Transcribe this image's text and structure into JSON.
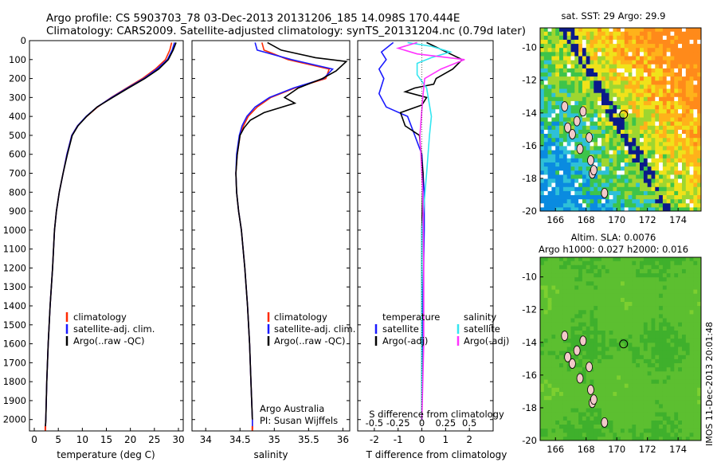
{
  "header": {
    "line1": "Argo profile: CS 5903703_78 03-Dec-2013 20131206_185 14.098S 170.444E",
    "line2": "Climatology: CARS2009. Satellite-adjusted climatology: synTS_20131204.nc (0.79d later)"
  },
  "colors": {
    "climatology": "#ff2a00",
    "satellite": "#1a1aff",
    "argo": "#000000",
    "sat_s": "#33e6f0",
    "argo_s": "#ff33ff"
  },
  "chart_data": [
    {
      "type": "line",
      "id": "temperature",
      "xlabel": "temperature (deg C)",
      "ylabel": "",
      "xlim": [
        -1,
        31
      ],
      "ylim": [
        2060,
        0
      ],
      "xticks": [
        0,
        5,
        10,
        15,
        20,
        25,
        30
      ],
      "yticks": [
        0,
        100,
        200,
        300,
        400,
        500,
        600,
        700,
        800,
        900,
        1000,
        1100,
        1200,
        1300,
        1400,
        1500,
        1600,
        1700,
        1800,
        1900,
        2000
      ],
      "legend": {
        "position": "bottom-left",
        "entries": [
          "climatology",
          "satellite-adj. clim.",
          "Argo(..raw -QC)"
        ]
      },
      "series": [
        {
          "name": "climatology",
          "color": "#ff2a00",
          "points": [
            [
              28.6,
              10
            ],
            [
              28.2,
              50
            ],
            [
              27.3,
              100
            ],
            [
              25.2,
              150
            ],
            [
              22.5,
              200
            ],
            [
              19.2,
              250
            ],
            [
              16,
              300
            ],
            [
              13.2,
              350
            ],
            [
              10.9,
              400
            ],
            [
              9,
              450
            ],
            [
              7.8,
              500
            ],
            [
              6.8,
              600
            ],
            [
              6,
              700
            ],
            [
              5.2,
              800
            ],
            [
              4.6,
              900
            ],
            [
              4.2,
              1000
            ],
            [
              3.8,
              1200
            ],
            [
              3.3,
              1400
            ],
            [
              2.9,
              1600
            ],
            [
              2.6,
              1800
            ],
            [
              2.4,
              2000
            ],
            [
              2.3,
              2050
            ]
          ]
        },
        {
          "name": "satellite-adj. clim.",
          "color": "#1a1aff",
          "points": [
            [
              29.2,
              10
            ],
            [
              28.7,
              50
            ],
            [
              27.7,
              100
            ],
            [
              25.5,
              150
            ],
            [
              22.8,
              200
            ],
            [
              19.4,
              250
            ],
            [
              16.1,
              300
            ],
            [
              13.1,
              350
            ],
            [
              10.8,
              400
            ],
            [
              9,
              450
            ],
            [
              7.8,
              500
            ],
            [
              6.8,
              600
            ],
            [
              6,
              700
            ],
            [
              5.2,
              800
            ],
            [
              4.6,
              900
            ],
            [
              4.2,
              1000
            ],
            [
              3.8,
              1200
            ],
            [
              3.3,
              1400
            ],
            [
              2.9,
              1600
            ],
            [
              2.6,
              1800
            ],
            [
              2.4,
              2000
            ],
            [
              2.3,
              2050
            ]
          ]
        },
        {
          "name": "Argo(..raw -QC)",
          "color": "#000000",
          "points": [
            [
              29.5,
              10
            ],
            [
              28.9,
              50
            ],
            [
              27.9,
              100
            ],
            [
              25.9,
              150
            ],
            [
              23,
              200
            ],
            [
              19.6,
              250
            ],
            [
              16.3,
              300
            ],
            [
              13.1,
              350
            ],
            [
              10.9,
              400
            ],
            [
              9.1,
              450
            ],
            [
              7.9,
              500
            ],
            [
              6.9,
              600
            ],
            [
              6,
              700
            ],
            [
              5.2,
              800
            ],
            [
              4.6,
              900
            ],
            [
              4.2,
              1000
            ],
            [
              3.8,
              1200
            ],
            [
              3.3,
              1400
            ],
            [
              2.9,
              1600
            ],
            [
              2.6,
              1800
            ],
            [
              2.4,
              2000
            ],
            [
              2.3,
              2050
            ]
          ]
        }
      ]
    },
    {
      "type": "line",
      "id": "salinity",
      "xlabel": "salinity",
      "ylabel": "",
      "xlim": [
        33.8,
        36.1
      ],
      "ylim": [
        2060,
        0
      ],
      "xticks": [
        34,
        34.5,
        35,
        35.5,
        36
      ],
      "legend": {
        "position": "bottom-right",
        "entries": [
          "climatology",
          "satellite-adj. clim.",
          "Argo(..raw -QC)"
        ]
      },
      "annotations": [
        "Argo Australia",
        "PI: Susan Wijffels"
      ],
      "series": [
        {
          "name": "climatology",
          "color": "#ff2a00",
          "points": [
            [
              34.82,
              10
            ],
            [
              34.85,
              50
            ],
            [
              35.2,
              100
            ],
            [
              35.8,
              150
            ],
            [
              35.75,
              200
            ],
            [
              35.3,
              250
            ],
            [
              34.95,
              300
            ],
            [
              34.75,
              350
            ],
            [
              34.62,
              400
            ],
            [
              34.55,
              450
            ],
            [
              34.5,
              500
            ],
            [
              34.46,
              600
            ],
            [
              34.44,
              700
            ],
            [
              34.45,
              800
            ],
            [
              34.48,
              900
            ],
            [
              34.52,
              1000
            ],
            [
              34.57,
              1200
            ],
            [
              34.61,
              1400
            ],
            [
              34.64,
              1600
            ],
            [
              34.66,
              1800
            ],
            [
              34.68,
              2000
            ],
            [
              34.68,
              2050
            ]
          ]
        },
        {
          "name": "satellite-adj. clim.",
          "color": "#1a1aff",
          "points": [
            [
              34.72,
              10
            ],
            [
              34.75,
              50
            ],
            [
              35.25,
              100
            ],
            [
              35.85,
              150
            ],
            [
              35.72,
              200
            ],
            [
              35.28,
              250
            ],
            [
              34.93,
              300
            ],
            [
              34.72,
              350
            ],
            [
              34.6,
              400
            ],
            [
              34.53,
              450
            ],
            [
              34.49,
              500
            ],
            [
              34.45,
              600
            ],
            [
              34.44,
              700
            ],
            [
              34.45,
              800
            ],
            [
              34.48,
              900
            ],
            [
              34.52,
              1000
            ],
            [
              34.57,
              1200
            ],
            [
              34.61,
              1400
            ],
            [
              34.64,
              1600
            ],
            [
              34.66,
              1800
            ],
            [
              34.68,
              2000
            ],
            [
              34.68,
              2050
            ]
          ]
        },
        {
          "name": "Argo(..raw -QC)",
          "color": "#000000",
          "points": [
            [
              34.9,
              10
            ],
            [
              35.1,
              50
            ],
            [
              35.6,
              90
            ],
            [
              36.05,
              110
            ],
            [
              35.9,
              160
            ],
            [
              35.7,
              200
            ],
            [
              35.35,
              250
            ],
            [
              35.15,
              300
            ],
            [
              35.3,
              330
            ],
            [
              34.85,
              380
            ],
            [
              34.65,
              420
            ],
            [
              34.56,
              460
            ],
            [
              34.5,
              500
            ],
            [
              34.46,
              600
            ],
            [
              34.44,
              700
            ],
            [
              34.45,
              800
            ],
            [
              34.48,
              900
            ],
            [
              34.52,
              1000
            ],
            [
              34.57,
              1200
            ],
            [
              34.61,
              1400
            ],
            [
              34.64,
              1600
            ],
            [
              34.66,
              1800
            ],
            [
              34.68,
              2000
            ]
          ]
        }
      ]
    },
    {
      "type": "line",
      "id": "difference",
      "xlabel": "T difference from climatology",
      "xlabel2": "S difference from climatology",
      "xlim": [
        -2.7,
        3
      ],
      "ylim": [
        2060,
        0
      ],
      "xticks": [
        -2,
        -1,
        0,
        1,
        2
      ],
      "xticklabels": [
        "-2",
        "-1",
        "0",
        "1",
        "2"
      ],
      "xticks2": [
        -0.5,
        -0.25,
        0,
        0.25,
        0.5
      ],
      "xticklabels2": [
        "-0.5",
        "-0.25",
        "0",
        "0.25",
        "0.5"
      ],
      "legend": {
        "position": "bottom",
        "groups": [
          {
            "title": "temperature",
            "entries": [
              "satellite",
              "Argo(-adj)"
            ]
          },
          {
            "title": "salinity",
            "entries": [
              "satellite",
              "Argo(-adj)"
            ]
          }
        ]
      },
      "series": [
        {
          "name": "temperature satellite",
          "color": "#1a1aff",
          "points": [
            [
              -1.2,
              10
            ],
            [
              -1.7,
              60
            ],
            [
              -1.5,
              100
            ],
            [
              -1.8,
              150
            ],
            [
              -1.6,
              200
            ],
            [
              -1.8,
              280
            ],
            [
              -1.5,
              350
            ],
            [
              -0.6,
              400
            ],
            [
              -0.3,
              500
            ],
            [
              0,
              600
            ],
            [
              0.1,
              800
            ],
            [
              0.1,
              1000
            ],
            [
              0.05,
              1400
            ],
            [
              0,
              2000
            ]
          ]
        },
        {
          "name": "temperature Argo(-adj)",
          "color": "#000000",
          "points": [
            [
              0.2,
              10
            ],
            [
              1.2,
              70
            ],
            [
              1.7,
              100
            ],
            [
              1.3,
              150
            ],
            [
              0.6,
              200
            ],
            [
              0.5,
              230
            ],
            [
              -0.3,
              250
            ],
            [
              -0.7,
              270
            ],
            [
              0.2,
              300
            ],
            [
              0,
              340
            ],
            [
              -0.9,
              380
            ],
            [
              -0.7,
              450
            ],
            [
              -0.1,
              500
            ],
            [
              0.05,
              700
            ],
            [
              0,
              1000
            ],
            [
              0,
              2000
            ]
          ]
        },
        {
          "name": "salinity satellite",
          "color": "#33e6f0",
          "points": [
            [
              -0.15,
              10
            ],
            [
              0.1,
              30
            ],
            [
              0.3,
              60
            ],
            [
              0.1,
              90
            ],
            [
              -0.05,
              120
            ],
            [
              -0.05,
              180
            ],
            [
              0.05,
              250
            ],
            [
              0.1,
              400
            ],
            [
              0.08,
              500
            ],
            [
              0.05,
              700
            ],
            [
              0,
              1000
            ],
            [
              0,
              2000
            ]
          ]
        },
        {
          "name": "salinity Argo(-adj)",
          "color": "#ff33ff",
          "points": [
            [
              -0.05,
              10
            ],
            [
              -0.25,
              40
            ],
            [
              -0.05,
              70
            ],
            [
              0.45,
              100
            ],
            [
              0.2,
              150
            ],
            [
              0.03,
              200
            ],
            [
              0.01,
              300
            ],
            [
              -0.02,
              500
            ],
            [
              0.01,
              800
            ],
            [
              0.02,
              1200
            ],
            [
              0.02,
              1600
            ],
            [
              0,
              2000
            ]
          ]
        }
      ]
    },
    {
      "type": "heatmap",
      "id": "sst_map",
      "title": "sat. SST: 29 Argo: 29.9",
      "xlim": [
        165,
        175.5
      ],
      "ylim": [
        -20,
        -8.8
      ],
      "xticks": [
        166,
        168,
        170,
        172,
        174
      ],
      "yticks": [
        -10,
        -12,
        -14,
        -16,
        -18,
        -20
      ],
      "marker": {
        "lon": 170.444,
        "lat": -14.098
      }
    },
    {
      "type": "heatmap",
      "id": "sla_map",
      "title": "Altim. SLA: 0.0076",
      "subtitle": "Argo h1000: 0.027 h2000: 0.016",
      "xlim": [
        165,
        175.5
      ],
      "ylim": [
        -20,
        -8.8
      ],
      "xticks": [
        166,
        168,
        170,
        172,
        174
      ],
      "yticks": [
        -10,
        -12,
        -14,
        -16,
        -18,
        -20
      ],
      "marker": {
        "lon": 170.444,
        "lat": -14.098
      }
    }
  ],
  "footer": {
    "credit": "IMOS 11-Dec-2013 20:01:48"
  }
}
